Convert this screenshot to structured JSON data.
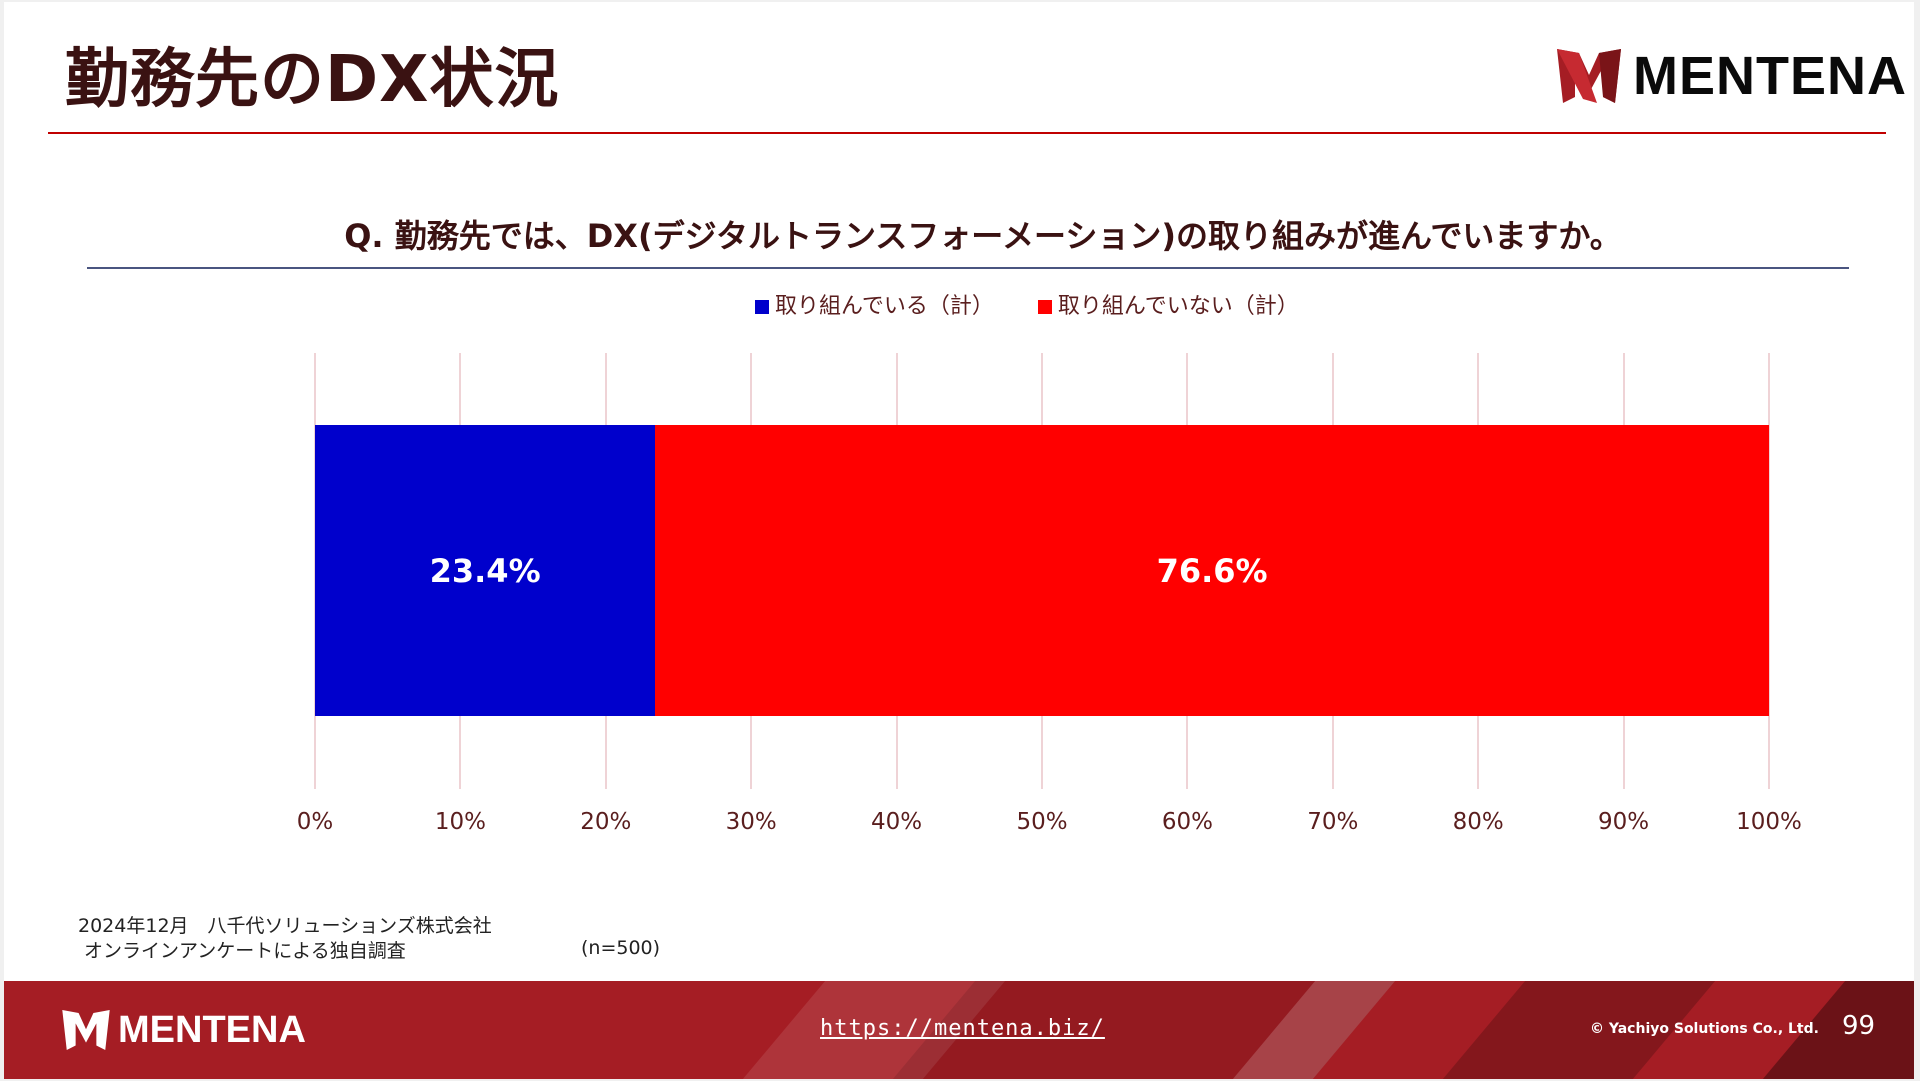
{
  "slide": {
    "title": "勤務先のDX状況",
    "brand": "MENTENA",
    "question": "Q. 勤務先では、DX(デジタルトランスフォーメーション)の取り組みが進んでいますか。"
  },
  "legend": [
    {
      "label": "取り組んでいる（計）",
      "color": "#0000cc"
    },
    {
      "label": "取り組んでいない（計）",
      "color": "#ff0000"
    }
  ],
  "chart_data": {
    "type": "bar",
    "orientation": "horizontal",
    "stacked": true,
    "title": "Q. 勤務先では、DX(デジタルトランスフォーメーション)の取り組みが進んでいますか。",
    "categories": [
      ""
    ],
    "series": [
      {
        "name": "取り組んでいる（計）",
        "values": [
          23.4
        ],
        "color": "#0000cc",
        "label": "23.4%"
      },
      {
        "name": "取り組んでいない（計）",
        "values": [
          76.6
        ],
        "color": "#ff0000",
        "label": "76.6%"
      }
    ],
    "xlabel": "",
    "ylabel": "",
    "xlim": [
      0,
      100
    ],
    "x_ticks": [
      "0%",
      "10%",
      "20%",
      "30%",
      "40%",
      "50%",
      "60%",
      "70%",
      "80%",
      "90%",
      "100%"
    ],
    "grid": true,
    "legend_position": "top"
  },
  "footnote": {
    "line1": "2024年12月　八千代ソリューションズ株式会社",
    "line2": " オンラインアンケートによる独自調査",
    "sample_size": "(n=500)"
  },
  "footer": {
    "brand": "MENTENA",
    "url": "https://mentena.biz/",
    "copyright": "© Yachiyo Solutions Co., Ltd.",
    "page_number": "99"
  },
  "colors": {
    "brand_red": "#a51d24",
    "title_text": "#3a1212",
    "accent_rule": "#c00000"
  }
}
